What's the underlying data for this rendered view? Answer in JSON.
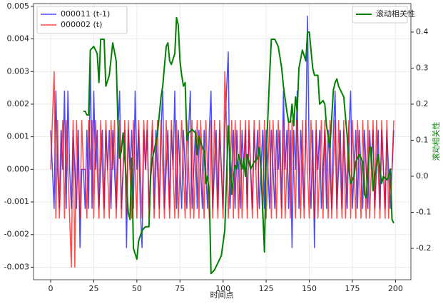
{
  "chart_data": {
    "type": "line",
    "xlabel": "时间点",
    "y2label": "滚动相关性",
    "y2label_color": "green",
    "xlim": [
      -9.95,
      208.95
    ],
    "xticks": [
      0,
      25,
      50,
      75,
      100,
      125,
      150,
      175,
      200
    ],
    "ylim": [
      -0.003385,
      0.005085
    ],
    "yticks": [
      -0.003,
      -0.002,
      -0.001,
      {
        "value": 0,
        "label": "0.000"
      },
      0.001,
      0.002,
      0.003,
      0.004,
      0.005
    ],
    "y2lim": [
      -0.287,
      0.479
    ],
    "y2ticks": [
      -0.2,
      -0.1,
      {
        "value": 0,
        "label": "0.0"
      },
      0.1,
      0.2,
      0.3,
      0.4
    ],
    "grid": true,
    "legend": "upper left",
    "legend2": "upper right",
    "x": [
      0,
      1,
      2,
      3,
      4,
      5,
      6,
      7,
      8,
      9,
      10,
      11,
      12,
      13,
      14,
      15,
      16,
      17,
      18,
      19,
      20,
      21,
      22,
      23,
      24,
      25,
      26,
      27,
      28,
      29,
      30,
      31,
      32,
      33,
      34,
      35,
      36,
      37,
      38,
      39,
      40,
      41,
      42,
      43,
      44,
      45,
      46,
      47,
      48,
      49,
      50,
      51,
      52,
      53,
      54,
      55,
      56,
      57,
      58,
      59,
      60,
      61,
      62,
      63,
      64,
      65,
      66,
      67,
      68,
      69,
      70,
      71,
      72,
      73,
      74,
      75,
      76,
      77,
      78,
      79,
      80,
      81,
      82,
      83,
      84,
      85,
      86,
      87,
      88,
      89,
      90,
      91,
      92,
      93,
      94,
      95,
      96,
      97,
      98,
      99,
      100,
      101,
      102,
      103,
      104,
      105,
      106,
      107,
      108,
      109,
      110,
      111,
      112,
      113,
      114,
      115,
      116,
      117,
      118,
      119,
      120,
      121,
      122,
      123,
      124,
      125,
      126,
      127,
      128,
      129,
      130,
      131,
      132,
      133,
      134,
      135,
      136,
      137,
      138,
      139,
      140,
      141,
      142,
      143,
      144,
      145,
      146,
      147,
      148,
      149,
      150,
      151,
      152,
      153,
      154,
      155,
      156,
      157,
      158,
      159,
      160,
      161,
      162,
      163,
      164,
      165,
      166,
      167,
      168,
      169,
      170,
      171,
      172,
      173,
      174,
      175,
      176,
      177,
      178,
      179,
      180,
      181,
      182,
      183,
      184,
      185,
      186,
      187,
      188,
      189,
      190,
      191,
      192,
      193,
      194,
      195,
      196,
      197,
      198,
      199
    ],
    "series": [
      {
        "name": "000011 (t-1)",
        "color": "blue",
        "alpha": 0.7,
        "width": 1.5,
        "values": [
          0.0012,
          0,
          -0.0012,
          0.0024,
          0,
          -0.0012,
          0.0012,
          0,
          0.0024,
          -0.0012,
          0.0024,
          0,
          -0.0012,
          0.0012,
          0,
          -0.0012,
          0.0012,
          -0.0024,
          0,
          0,
          -0.0012,
          0.0012,
          -0.0012,
          0.0036,
          -0.0012,
          0.0024,
          0,
          0.0012,
          -0.0012,
          0,
          0.0012,
          -0.0012,
          0.0012,
          0,
          0.0012,
          -0.0012,
          0.0012,
          0,
          -0.0012,
          0.0012,
          0.0024,
          -0.0012,
          0,
          0.0012,
          -0.0024,
          0.0012,
          0,
          0.0012,
          -0.0012,
          0.0024,
          0,
          0.0012,
          -0.0012,
          -0.0024,
          0.0012,
          0,
          0.0012,
          -0.0012,
          0,
          0.0012,
          -0.0012,
          0.0012,
          0,
          -0.0012,
          0.0012,
          0.0024,
          -0.0012,
          0,
          0.0012,
          -0.0012,
          0.0012,
          0,
          0.0024,
          -0.0012,
          0.0012,
          0,
          -0.0012,
          0.0012,
          0,
          -0.0012,
          0.0012,
          0.0024,
          -0.0012,
          0,
          0.0012,
          -0.0012,
          0.0012,
          0,
          -0.0012,
          0.0012,
          0,
          -0.0012,
          0.0012,
          0.0024,
          -0.0012,
          0,
          0.0012,
          -0.0012,
          0.0012,
          0,
          -0.0012,
          0.0012,
          0.0024,
          0.0036,
          -0.0012,
          0,
          0.0012,
          -0.0012,
          0.0012,
          0,
          -0.0012,
          0.0012,
          0,
          0.0012,
          -0.0012,
          0.0012,
          0,
          -0.0012,
          0.0012,
          0,
          0.0012,
          -0.0012,
          0,
          0.0012,
          -0.0012,
          0.0012,
          0,
          -0.0012,
          0.0012,
          0,
          -0.0012,
          0.0012,
          0,
          0.0012,
          -0.0012,
          0.0024,
          0,
          0.0012,
          -0.0012,
          0.0012,
          -0.0024,
          0.0012,
          0,
          0.0024,
          -0.0012,
          0.0012,
          0,
          -0.0012,
          0.0012,
          0.0047,
          0,
          -0.0012,
          0.0012,
          -0.0024,
          0.0012,
          0,
          0.0012,
          -0.0012,
          0,
          0.0012,
          -0.0012,
          0.0012,
          0,
          -0.0012,
          0.0012,
          0.0024,
          -0.0012,
          0,
          0.0012,
          -0.0012,
          0.0012,
          0,
          -0.0012,
          0.0012,
          0.0024,
          -0.0012,
          0,
          0.0012,
          -0.0012,
          0.0012,
          0,
          -0.0012,
          0.0012,
          0,
          -0.0012,
          0.0012,
          0,
          0.0012,
          -0.0012,
          0,
          0.0012,
          -0.0012,
          0.0012,
          0,
          -0.0012,
          0.0012,
          0,
          -0.0012,
          0,
          0.0012
        ]
      },
      {
        "name": "000002 (t)",
        "color": "red",
        "alpha": 0.7,
        "width": 1.5,
        "values": [
          0,
          0.0015,
          0.003,
          -0.0015,
          0.0015,
          -0.0015,
          0,
          0.0015,
          -0.0015,
          0.0015,
          0,
          -0.0015,
          -0.003,
          0.0015,
          -0.003,
          0.0015,
          0,
          -0.0015,
          0.0015,
          0,
          0,
          -0.0015,
          0.0015,
          0,
          0.0015,
          -0.0015,
          0.0015,
          0,
          -0.0015,
          0.0015,
          0,
          -0.0015,
          0.0015,
          0,
          -0.0015,
          0.0015,
          0,
          0.0015,
          -0.0015,
          0,
          0.0015,
          -0.0015,
          0,
          0.0015,
          -0.0015,
          0.0015,
          0,
          -0.0015,
          0.0015,
          0,
          -0.0015,
          0.0015,
          0,
          -0.0015,
          0.0015,
          0,
          0.0015,
          -0.0015,
          0,
          0.0015,
          -0.0015,
          0,
          0.0015,
          -0.0015,
          0.0015,
          0,
          -0.0015,
          0.0015,
          0,
          -0.0015,
          0.0015,
          0,
          -0.0015,
          0.0015,
          -0.0015,
          0,
          0.0015,
          0,
          -0.0015,
          0.0015,
          0,
          -0.0015,
          0.0015,
          -0.0015,
          0,
          0.0015,
          -0.0015,
          0.0015,
          0,
          -0.0015,
          0.0015,
          0,
          -0.0015,
          0.0015,
          -0.0015,
          0.0015,
          0,
          -0.0015,
          0.0015,
          0,
          -0.0015,
          0.003,
          0.0015,
          -0.0015,
          0,
          0.0015,
          -0.0015,
          0.0015,
          0,
          -0.0015,
          0.0015,
          -0.0015,
          0,
          0.0015,
          -0.0015,
          0.0015,
          0,
          -0.0015,
          0.0015,
          0,
          -0.0015,
          0.0015,
          0,
          -0.0015,
          0.0015,
          -0.0015,
          0,
          0.0015,
          -0.0015,
          0.0015,
          0,
          -0.0015,
          0.0015,
          0,
          -0.0015,
          0.0015,
          -0.0015,
          0,
          0.0015,
          -0.0015,
          0.0015,
          0,
          -0.0015,
          0.0015,
          0,
          -0.0015,
          0.0015,
          -0.0015,
          0.0015,
          0,
          -0.0015,
          0.0015,
          0,
          -0.0015,
          0.0015,
          -0.0015,
          0,
          0.0015,
          -0.0015,
          0.0015,
          0,
          -0.0015,
          0.0015,
          -0.0015,
          0,
          0.0015,
          -0.0015,
          0.0015,
          0,
          -0.0015,
          0.0015,
          -0.0015,
          0,
          0.0015,
          -0.0015,
          0.0015,
          0,
          -0.0015,
          0.0015,
          0,
          -0.0015,
          0.0015,
          0,
          -0.0015,
          0.0015,
          -0.0015,
          0,
          0.0015,
          -0.0015,
          0.0015,
          0,
          -0.0015,
          0.0015,
          0,
          -0.0015,
          0.0015,
          -0.0015,
          0,
          0,
          0.0015
        ]
      },
      {
        "name": "滚动相关性",
        "color": "green",
        "alpha": 1,
        "width": 2,
        "axis": "y2",
        "x": [
          19,
          20,
          21,
          22,
          23,
          25,
          27,
          28,
          29,
          31,
          32,
          34,
          36,
          38,
          39,
          40,
          41,
          42,
          44,
          45,
          46,
          47,
          48,
          50,
          51,
          53,
          55,
          57,
          58,
          59,
          60,
          62,
          64,
          65,
          67,
          68,
          69,
          70,
          72,
          73,
          74,
          75,
          76,
          77,
          78,
          79,
          80,
          82,
          84,
          85,
          86,
          88,
          89,
          90,
          91,
          92,
          93,
          95,
          97,
          99,
          101,
          103,
          104,
          105,
          106,
          107,
          108,
          109,
          110,
          111,
          112,
          113,
          114,
          116,
          118,
          120,
          121,
          122,
          124,
          125,
          127,
          128,
          130,
          132,
          134,
          135,
          137,
          138,
          139,
          140,
          141,
          142,
          143,
          144,
          146,
          148,
          149,
          150,
          152,
          153,
          155,
          156,
          158,
          159,
          160,
          162,
          164,
          165,
          166,
          167,
          169,
          170,
          172,
          173,
          174,
          176,
          177,
          179,
          181,
          182,
          183,
          185,
          186,
          187,
          188,
          190,
          192,
          193,
          195,
          196,
          197,
          198,
          199
        ],
        "values": [
          0.18,
          0.18,
          0.17,
          0.17,
          0.35,
          0.36,
          0.34,
          0.26,
          0.38,
          0.38,
          0.25,
          0.28,
          0.37,
          0.32,
          0.15,
          0.05,
          0.07,
          0.12,
          -0.02,
          -0.1,
          -0.12,
          0.05,
          -0.2,
          -0.23,
          -0.18,
          -0.15,
          -0.14,
          -0.14,
          0,
          0.05,
          0.07,
          0.12,
          0.22,
          0.25,
          0.36,
          0.37,
          0.32,
          0.31,
          0.34,
          0.44,
          0.42,
          0.32,
          0.28,
          0.25,
          0.26,
          0.1,
          0.12,
          0.13,
          0.12,
          0.06,
          0.11,
          0.08,
          0.07,
          -0.02,
          0,
          -0.05,
          -0.27,
          -0.26,
          -0.24,
          -0.22,
          -0.15,
          0.14,
          0.05,
          -0.05,
          0,
          0.03,
          0.02,
          0.06,
          0.04,
          0.02,
          0.05,
          0,
          0.06,
          0.02,
          0.04,
          0.05,
          0.08,
          0.02,
          -0.21,
          0.05,
          0.28,
          0.38,
          0.38,
          0.36,
          0.3,
          0.25,
          0.18,
          0.15,
          0.15,
          0.2,
          0.14,
          0.22,
          0.18,
          0.3,
          0.35,
          0.32,
          0.4,
          0.4,
          0.3,
          0.28,
          0.28,
          0.2,
          0.21,
          0.2,
          0.14,
          0.08,
          0.24,
          0.26,
          0.27,
          0.25,
          0.23,
          0.22,
          0.11,
          0.02,
          -0.02,
          0,
          0.04,
          0.06,
          0.04,
          -0.05,
          -0.06,
          0.08,
          0.08,
          -0.04,
          0,
          0.06,
          -0.02,
          0,
          -0.01,
          0,
          0.02,
          -0.12,
          -0.13
        ]
      }
    ]
  }
}
